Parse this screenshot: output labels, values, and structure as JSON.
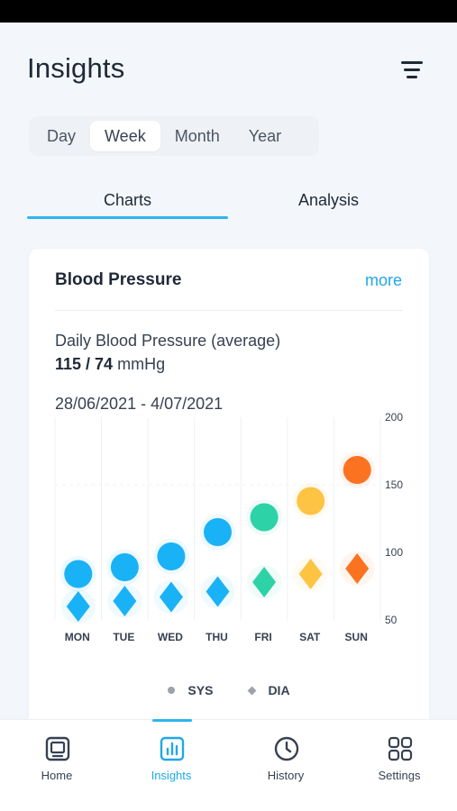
{
  "header": {
    "title": "Insights",
    "filter_icon": "filter-lines-icon"
  },
  "period": {
    "options": [
      "Day",
      "Week",
      "Month",
      "Year"
    ],
    "selected": "Week"
  },
  "tabs": [
    {
      "label": "Charts",
      "active": true
    },
    {
      "label": "Analysis",
      "active": false
    }
  ],
  "card": {
    "title": "Blood Pressure",
    "more": "more",
    "daily_label": "Daily Blood Pressure (average)",
    "reading_value": "115 / 74",
    "reading_unit": "mmHg",
    "date_range": "28/06/2021 - 4/07/2021"
  },
  "chart_data": {
    "type": "scatter",
    "categories": [
      "MON",
      "TUE",
      "WED",
      "THU",
      "FRI",
      "SAT",
      "SUN"
    ],
    "ylim": [
      50,
      200
    ],
    "yticks": [
      50,
      100,
      150,
      200
    ],
    "y_axis_position": "right",
    "series": [
      {
        "name": "SYS",
        "marker": "circle",
        "values": [
          84,
          89,
          97,
          115,
          126,
          138,
          161
        ]
      },
      {
        "name": "DIA",
        "marker": "diamond",
        "values": [
          60,
          64,
          67,
          71,
          78,
          84,
          88
        ]
      }
    ],
    "point_colors": [
      "#1ab2f6",
      "#1ab2f6",
      "#1ab2f6",
      "#1ab2f6",
      "#2dd2a6",
      "#fdc444",
      "#fb7320"
    ],
    "legend_position": "bottom",
    "grid": "vertical"
  },
  "legend": [
    {
      "label": "SYS",
      "icon": "circle"
    },
    {
      "label": "DIA",
      "icon": "diamond"
    }
  ],
  "nav": {
    "items": [
      {
        "label": "Home",
        "icon": "monitor-icon",
        "active": false
      },
      {
        "label": "Insights",
        "icon": "bar-chart-icon",
        "active": true
      },
      {
        "label": "History",
        "icon": "clock-icon",
        "active": false
      },
      {
        "label": "Settings",
        "icon": "grid-icon",
        "active": false
      }
    ]
  },
  "colors": {
    "accent": "#2eb5f0",
    "link": "#1fa8e8",
    "text": "#1f2937"
  }
}
